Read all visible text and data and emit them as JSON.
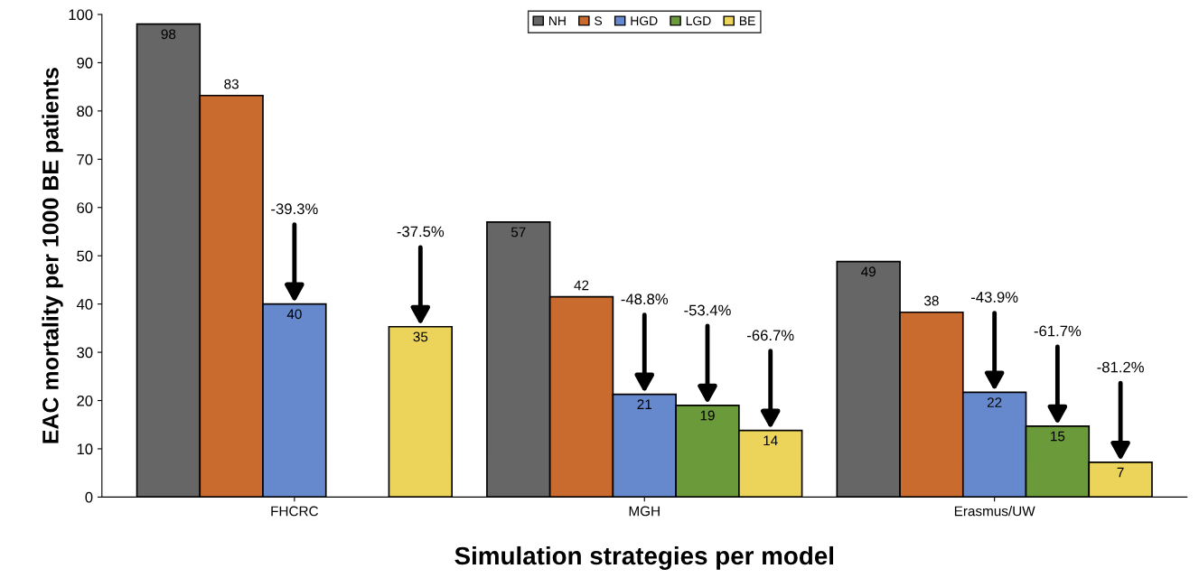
{
  "chart_data": {
    "type": "bar",
    "xlabel": "Simulation strategies per model",
    "ylabel": "EAC mortality per 1000 BE patients",
    "categories": [
      "FHCRC",
      "MGH",
      "Erasmus/UW"
    ],
    "series": [
      {
        "name": "NH",
        "color": "#666666",
        "values": [
          98,
          57,
          48.8
        ],
        "value_labels": [
          "98",
          "57",
          "49"
        ]
      },
      {
        "name": "S",
        "color": "#c96a2e",
        "values": [
          83.2,
          41.5,
          38.3
        ],
        "value_labels": [
          "83",
          "42",
          "38"
        ]
      },
      {
        "name": "HGD",
        "color": "#6688cc",
        "values": [
          40,
          21.3,
          21.7
        ],
        "value_labels": [
          "40",
          "21",
          "22"
        ]
      },
      {
        "name": "LGD",
        "color": "#6a9a3a",
        "values": [
          null,
          19,
          14.7
        ],
        "value_labels": [
          null,
          "19",
          "15"
        ]
      },
      {
        "name": "BE",
        "color": "#ecd45a",
        "values": [
          35.3,
          13.8,
          7.2
        ],
        "value_labels": [
          "35",
          "14",
          "7"
        ]
      }
    ],
    "annotations": [
      {
        "text": "-39.3%",
        "x": "FHCRC",
        "y": 40
      },
      {
        "text": "-37.5%",
        "y": 35.3
      },
      {
        "text": "-48.8%",
        "x": "MGH",
        "y": 21.3
      },
      {
        "text": "-53.4%",
        "y": 19
      },
      {
        "text": "-66.7%",
        "y": 13.8
      },
      {
        "text": "-43.9%",
        "x": "Erasmus/UW",
        "y": 21.7
      },
      {
        "text": "-61.7%",
        "y": 14.7
      },
      {
        "text": "-81.2%",
        "y": 7.2
      }
    ],
    "ylim": [
      0,
      100
    ],
    "yticks": [
      0,
      10,
      20,
      30,
      40,
      50,
      60,
      70,
      80,
      90,
      100
    ],
    "legend": "top",
    "grid": false
  }
}
